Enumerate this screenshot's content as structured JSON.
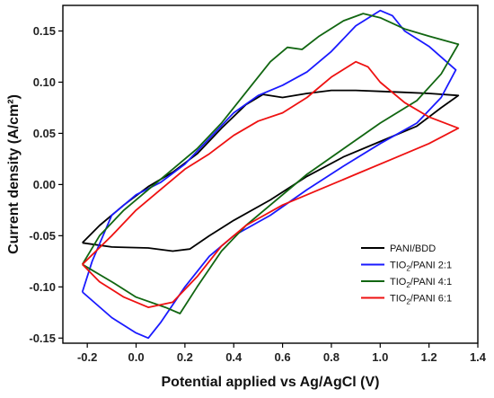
{
  "chart_data": {
    "type": "line",
    "xlabel": "Potential applied vs Ag/AgCl (V)",
    "ylabel": "Current density (A/cm²)",
    "xlim": [
      -0.3,
      1.4
    ],
    "ylim": [
      -0.155,
      0.175
    ],
    "xticks": [
      -0.2,
      0.0,
      0.2,
      0.4,
      0.6,
      0.8,
      1.0,
      1.2,
      1.4
    ],
    "yticks": [
      -0.15,
      -0.1,
      -0.05,
      0.0,
      0.05,
      0.1,
      0.15
    ],
    "xtick_labels": [
      "-0.2",
      "0.0",
      "0.2",
      "0.4",
      "0.6",
      "0.8",
      "1.0",
      "1.2",
      "1.4"
    ],
    "ytick_labels": [
      "-0.15",
      "-0.10",
      "-0.05",
      "0.00",
      "0.05",
      "0.10",
      "0.15"
    ],
    "grid": false,
    "legend_position": "bottom-right",
    "series": [
      {
        "name": "PANI/BDD",
        "legend_main": "PANI/BDD",
        "legend_sub": "",
        "legend_tail": "",
        "color": "#000000",
        "points": [
          [
            -0.22,
            -0.057
          ],
          [
            -0.15,
            -0.04
          ],
          [
            -0.05,
            -0.02
          ],
          [
            0.05,
            -0.002
          ],
          [
            0.15,
            0.012
          ],
          [
            0.25,
            0.03
          ],
          [
            0.35,
            0.055
          ],
          [
            0.45,
            0.078
          ],
          [
            0.52,
            0.088
          ],
          [
            0.6,
            0.085
          ],
          [
            0.7,
            0.089
          ],
          [
            0.8,
            0.092
          ],
          [
            0.9,
            0.092
          ],
          [
            1.0,
            0.091
          ],
          [
            1.1,
            0.09
          ],
          [
            1.2,
            0.089
          ],
          [
            1.32,
            0.087
          ],
          [
            1.25,
            0.075
          ],
          [
            1.15,
            0.057
          ],
          [
            1.0,
            0.042
          ],
          [
            0.85,
            0.027
          ],
          [
            0.7,
            0.008
          ],
          [
            0.55,
            -0.015
          ],
          [
            0.4,
            -0.035
          ],
          [
            0.3,
            -0.05
          ],
          [
            0.22,
            -0.063
          ],
          [
            0.15,
            -0.065
          ],
          [
            0.05,
            -0.062
          ],
          [
            -0.1,
            -0.061
          ],
          [
            -0.22,
            -0.057
          ]
        ]
      },
      {
        "name": "TiO2/PANI 2:1",
        "legend_main": "TIO",
        "legend_sub": "2",
        "legend_tail": "/PANI 2:1",
        "color": "#1a1aff",
        "points": [
          [
            -0.22,
            -0.105
          ],
          [
            -0.18,
            -0.075
          ],
          [
            -0.1,
            -0.03
          ],
          [
            0.0,
            -0.01
          ],
          [
            0.1,
            0.002
          ],
          [
            0.2,
            0.02
          ],
          [
            0.3,
            0.045
          ],
          [
            0.4,
            0.07
          ],
          [
            0.5,
            0.087
          ],
          [
            0.6,
            0.097
          ],
          [
            0.7,
            0.11
          ],
          [
            0.8,
            0.13
          ],
          [
            0.9,
            0.155
          ],
          [
            1.0,
            0.17
          ],
          [
            1.05,
            0.165
          ],
          [
            1.1,
            0.15
          ],
          [
            1.2,
            0.135
          ],
          [
            1.31,
            0.112
          ],
          [
            1.25,
            0.085
          ],
          [
            1.15,
            0.06
          ],
          [
            1.0,
            0.04
          ],
          [
            0.85,
            0.018
          ],
          [
            0.7,
            -0.005
          ],
          [
            0.55,
            -0.03
          ],
          [
            0.4,
            -0.05
          ],
          [
            0.3,
            -0.07
          ],
          [
            0.2,
            -0.1
          ],
          [
            0.1,
            -0.135
          ],
          [
            0.05,
            -0.15
          ],
          [
            0.0,
            -0.145
          ],
          [
            -0.1,
            -0.13
          ],
          [
            -0.22,
            -0.105
          ]
        ]
      },
      {
        "name": "TiO2/PANI 4:1",
        "legend_main": "TIO",
        "legend_sub": "2",
        "legend_tail": "/PANI 4:1",
        "color": "#116611",
        "points": [
          [
            -0.22,
            -0.078
          ],
          [
            -0.15,
            -0.05
          ],
          [
            -0.05,
            -0.025
          ],
          [
            0.05,
            -0.005
          ],
          [
            0.15,
            0.015
          ],
          [
            0.25,
            0.035
          ],
          [
            0.35,
            0.06
          ],
          [
            0.45,
            0.09
          ],
          [
            0.55,
            0.12
          ],
          [
            0.62,
            0.134
          ],
          [
            0.68,
            0.132
          ],
          [
            0.75,
            0.145
          ],
          [
            0.85,
            0.16
          ],
          [
            0.93,
            0.167
          ],
          [
            1.0,
            0.163
          ],
          [
            1.1,
            0.152
          ],
          [
            1.2,
            0.145
          ],
          [
            1.32,
            0.137
          ],
          [
            1.25,
            0.108
          ],
          [
            1.15,
            0.082
          ],
          [
            1.0,
            0.06
          ],
          [
            0.85,
            0.035
          ],
          [
            0.7,
            0.01
          ],
          [
            0.55,
            -0.02
          ],
          [
            0.45,
            -0.04
          ],
          [
            0.35,
            -0.065
          ],
          [
            0.25,
            -0.1
          ],
          [
            0.18,
            -0.126
          ],
          [
            0.12,
            -0.12
          ],
          [
            0.0,
            -0.11
          ],
          [
            -0.1,
            -0.095
          ],
          [
            -0.22,
            -0.078
          ]
        ]
      },
      {
        "name": "TiO2/PANI 6:1",
        "legend_main": "TIO",
        "legend_sub": "2",
        "legend_tail": "/PANI 6:1",
        "color": "#ee1111",
        "points": [
          [
            -0.22,
            -0.078
          ],
          [
            -0.1,
            -0.05
          ],
          [
            0.0,
            -0.025
          ],
          [
            0.1,
            -0.005
          ],
          [
            0.2,
            0.015
          ],
          [
            0.3,
            0.03
          ],
          [
            0.4,
            0.048
          ],
          [
            0.5,
            0.062
          ],
          [
            0.6,
            0.07
          ],
          [
            0.7,
            0.085
          ],
          [
            0.8,
            0.105
          ],
          [
            0.9,
            0.12
          ],
          [
            0.95,
            0.115
          ],
          [
            1.0,
            0.1
          ],
          [
            1.1,
            0.08
          ],
          [
            1.2,
            0.066
          ],
          [
            1.32,
            0.055
          ],
          [
            1.2,
            0.04
          ],
          [
            1.05,
            0.025
          ],
          [
            0.9,
            0.01
          ],
          [
            0.75,
            -0.005
          ],
          [
            0.6,
            -0.02
          ],
          [
            0.45,
            -0.04
          ],
          [
            0.35,
            -0.06
          ],
          [
            0.25,
            -0.09
          ],
          [
            0.15,
            -0.115
          ],
          [
            0.05,
            -0.12
          ],
          [
            -0.05,
            -0.11
          ],
          [
            -0.15,
            -0.095
          ],
          [
            -0.22,
            -0.078
          ]
        ]
      }
    ]
  }
}
